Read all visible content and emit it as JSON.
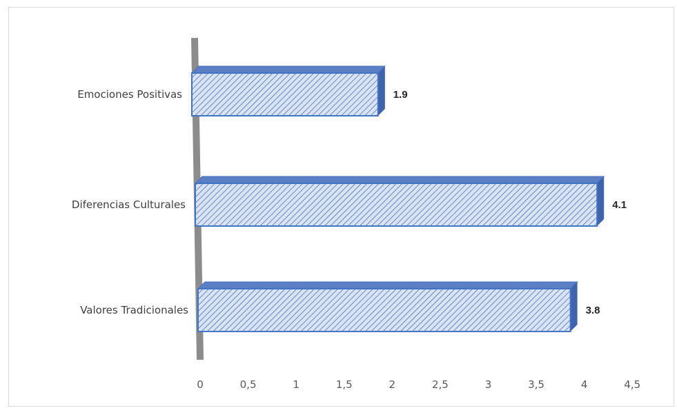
{
  "chart_data": {
    "type": "bar",
    "orientation": "horizontal",
    "style": "3d-hatched",
    "categories": [
      "Emociones Positivas",
      "Diferencias Culturales",
      "Valores Tradicionales"
    ],
    "values": [
      1.9,
      4.1,
      3.8
    ],
    "value_labels": [
      "1.9",
      "4.1",
      "3.8"
    ],
    "xlim": [
      0,
      4.5
    ],
    "x_ticks": [
      0,
      0.5,
      1,
      1.5,
      2,
      2.5,
      3,
      3.5,
      4,
      4.5
    ],
    "x_tick_labels": [
      "0",
      "0,5",
      "1",
      "1,5",
      "2",
      "2,5",
      "3",
      "3,5",
      "4",
      "4,5"
    ],
    "grid": false,
    "legend": "none",
    "colors": {
      "bar_fill": "#dae3f3",
      "bar_stroke": "#4472c4",
      "bar_hatch": "#4472c4",
      "bar_top": "#5b7fc4",
      "axis_wall": "#8c8c8c"
    }
  }
}
